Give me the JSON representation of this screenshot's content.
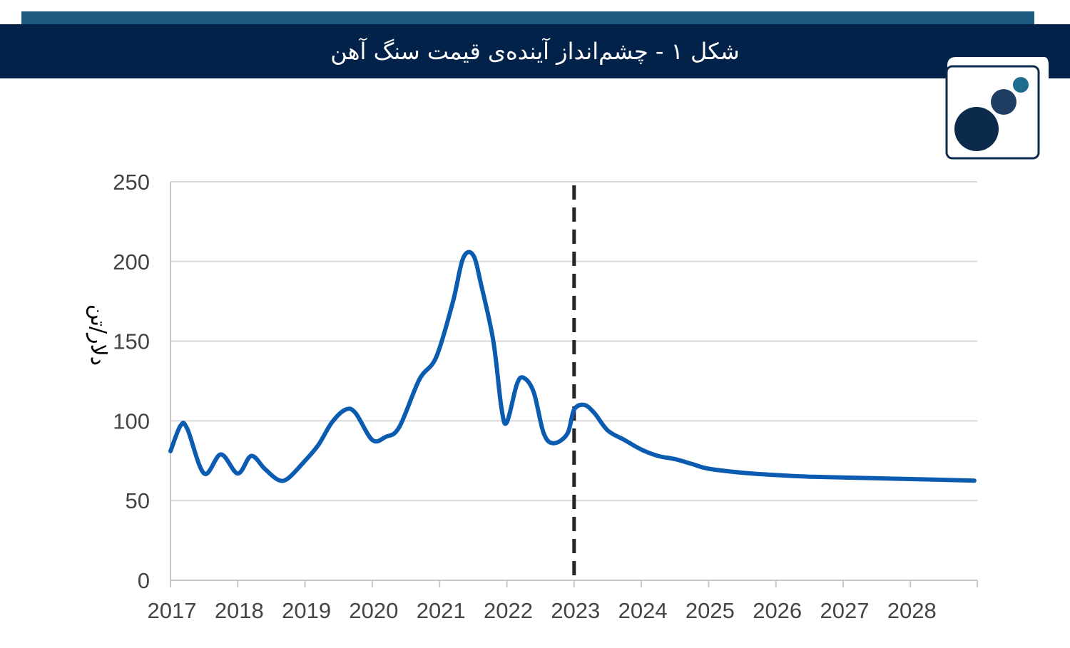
{
  "header": {
    "title": "شکل ۱ - چشم‌انداز آینده‌ی قیمت سنگ آهن"
  },
  "logo": {
    "icon": "three-circles-logo-icon"
  },
  "colors": {
    "header_bg": "#03224a",
    "header_strip": "#1d5a80",
    "line": "#0b5cb0",
    "logo_dark": "#0b2a4c",
    "logo_mid": "#1f3f62",
    "logo_accent": "#1f6d8e",
    "grid": "#d9d9d9"
  },
  "chart_data": {
    "type": "line",
    "title": "",
    "xlabel": "",
    "ylabel": "دلار/تن",
    "xlim": [
      2017,
      2029
    ],
    "ylim": [
      0,
      250
    ],
    "yticks": [
      0,
      50,
      100,
      150,
      200,
      250
    ],
    "xticks": [
      2017,
      2018,
      2019,
      2020,
      2021,
      2022,
      2023,
      2024,
      2025,
      2026,
      2027,
      2028
    ],
    "grid": "horizontal",
    "forecast_marker": {
      "x": 2023,
      "style": "dashed"
    },
    "series": [
      {
        "x": [
          2017,
          2017.15,
          2017.25,
          2017.5,
          2017.75,
          2018.0,
          2018.2,
          2018.4,
          2018.6,
          2018.75,
          2019.0,
          2019.2,
          2019.4,
          2019.6,
          2019.75,
          2020.0,
          2020.2,
          2020.4,
          2020.7,
          2020.95,
          2021.2,
          2021.35,
          2021.5,
          2021.62,
          2021.8,
          2021.92,
          2022.0,
          2022.15,
          2022.25,
          2022.4,
          2022.55,
          2022.7,
          2022.9,
          2023.0,
          2023.15,
          2023.3,
          2023.5,
          2023.75,
          2024.0,
          2024.25,
          2024.5,
          2024.75,
          2025.0,
          2025.5,
          2026.0,
          2026.5,
          2027.0,
          2027.5,
          2028.0,
          2028.5,
          2028.95
        ],
        "values": [
          81,
          97,
          95,
          67,
          79,
          67,
          78,
          70,
          63,
          64,
          75,
          85,
          99,
          107,
          105,
          88,
          90,
          96,
          126,
          140,
          175,
          202,
          204,
          185,
          150,
          108,
          99,
          123,
          127,
          118,
          92,
          86,
          92,
          107,
          110,
          105,
          94,
          88,
          82,
          78,
          76,
          73,
          70,
          67.5,
          66,
          65,
          64.5,
          64,
          63.5,
          63,
          62.5
        ]
      }
    ]
  }
}
